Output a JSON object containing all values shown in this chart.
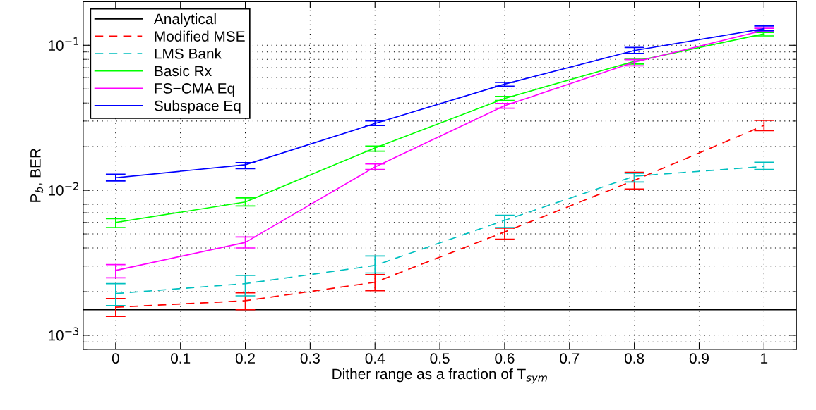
{
  "chart_data": {
    "type": "line",
    "xlabel": "Dither range as a fraction of T$_{sym}$",
    "ylabel": "P$_{b}$, BER",
    "x": [
      0,
      0.2,
      0.4,
      0.6,
      0.8,
      1
    ],
    "series": [
      {
        "name": "Analytical",
        "color": "#000000",
        "x": [
          -0.05,
          1.05
        ],
        "values": [
          0.0015,
          0.0015
        ],
        "line_style": "solid"
      },
      {
        "name": "Modified MSE",
        "color": "#ff0000",
        "line_style": "dashed",
        "values": [
          0.00156,
          0.00173,
          0.00232,
          0.00516,
          0.0117,
          0.028
        ],
        "errors": [
          [
            0.00135,
            0.00179
          ],
          [
            0.0015,
            0.00196
          ],
          [
            0.00203,
            0.00262
          ],
          [
            0.00459,
            0.00547
          ],
          [
            0.0102,
            0.0133
          ],
          [
            0.0258,
            0.0303
          ]
        ]
      },
      {
        "name": "LMS Bank",
        "color": "#00bfbf",
        "line_style": "dashed",
        "values": [
          0.00194,
          0.00227,
          0.00303,
          0.0062,
          0.0125,
          0.0146
        ],
        "errors": [
          [
            0.0016,
            0.00227
          ],
          [
            0.00187,
            0.00259
          ],
          [
            0.00269,
            0.00352
          ],
          [
            0.00553,
            0.00673
          ],
          [
            0.0114,
            0.0131
          ],
          [
            0.0139,
            0.0156
          ]
        ]
      },
      {
        "name": "Basic Rx",
        "color": "#00ff00",
        "line_style": "solid",
        "values": [
          0.006,
          0.0083,
          0.0196,
          0.043,
          0.0775,
          0.12
        ],
        "errors": [
          [
            0.00553,
            0.00637
          ],
          [
            0.0078,
            0.00887
          ],
          [
            0.0186,
            0.0202
          ],
          [
            0.0416,
            0.0444
          ],
          [
            0.0742,
            0.0812
          ],
          [
            0.116,
            0.1225
          ]
        ]
      },
      {
        "name": "FS−CMA Eq",
        "color": "#ff00ff",
        "line_style": "solid",
        "values": [
          0.0028,
          0.00437,
          0.0145,
          0.0383,
          0.0765,
          0.127
        ],
        "errors": [
          [
            0.00249,
            0.00307
          ],
          [
            0.004,
            0.00476
          ],
          [
            0.0139,
            0.0152
          ],
          [
            0.0368,
            0.0397
          ],
          [
            0.0722,
            0.0796
          ],
          [
            0.124,
            0.131
          ]
        ]
      },
      {
        "name": "Subspace Eq",
        "color": "#0000ff",
        "line_style": "solid",
        "values": [
          0.0122,
          0.015,
          0.0289,
          0.054,
          0.092,
          0.13
        ],
        "errors": [
          [
            0.0116,
            0.0129
          ],
          [
            0.0141,
            0.0155
          ],
          [
            0.028,
            0.0301
          ],
          [
            0.0523,
            0.0555
          ],
          [
            0.088,
            0.0966
          ],
          [
            0.126,
            0.136
          ]
        ]
      }
    ],
    "log": "y",
    "xlim": [
      -0.05,
      1.05
    ],
    "ylim": [
      0.0008,
      0.2
    ],
    "xticks": [
      0,
      0.1,
      0.2,
      0.3,
      0.4,
      0.5,
      0.6,
      0.7,
      0.8,
      0.9,
      1
    ],
    "yticks": [
      {
        "value": 0.001,
        "label": "10$^{−3}$"
      },
      {
        "value": 0.01,
        "label": "10$^{−2}$"
      },
      {
        "value": 0.1,
        "label": "10$^{−1}$"
      }
    ],
    "grid": true,
    "legend": "top left",
    "marker": "none"
  }
}
